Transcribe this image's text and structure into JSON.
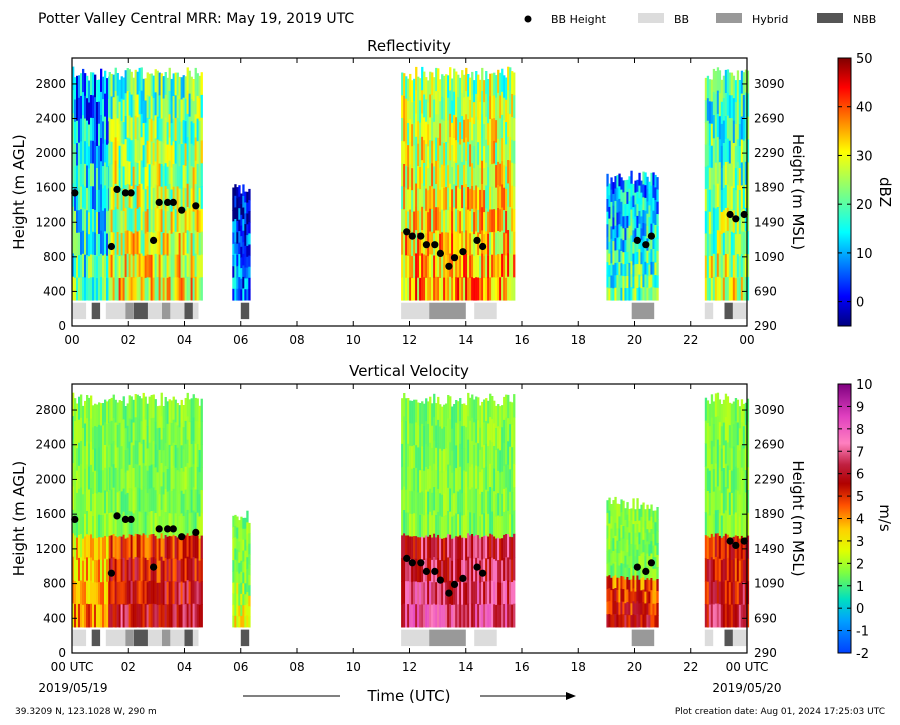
{
  "header": {
    "title": "Potter Valley Central MRR:  May 19, 2019 UTC",
    "legend": [
      {
        "label": "BB Height",
        "kind": "dot",
        "color": "#000000"
      },
      {
        "label": "BB",
        "kind": "bar",
        "color": "#dcdcdc"
      },
      {
        "label": "Hybrid",
        "kind": "bar",
        "color": "#999999"
      },
      {
        "label": "NBB",
        "kind": "bar",
        "color": "#555555"
      }
    ]
  },
  "footer": {
    "location": "39.3209 N, 123.1028 W, 290 m",
    "creation": "Plot creation date: Aug 01, 2024 17:25:03 UTC",
    "xlabel": "Time (UTC)",
    "date_start": "2019/05/19",
    "date_end": "2019/05/20"
  },
  "colors": {
    "bb": "#dcdcdc",
    "hybrid": "#999999",
    "nbb": "#555555",
    "dot": "#000000"
  },
  "chart_data": [
    {
      "type": "heatmap",
      "title": "Reflectivity",
      "ylabel": "Height (m AGL)",
      "ylabel_right": "Height (m MSL)",
      "colorbar_label": "dBZ",
      "colorbar_range": [
        -5,
        50
      ],
      "colorbar_ticks": [
        "50",
        "40",
        "30",
        "20",
        "10",
        "0"
      ],
      "x_ticks": [
        "00",
        "02",
        "04",
        "06",
        "08",
        "10",
        "12",
        "14",
        "16",
        "18",
        "20",
        "22",
        "00"
      ],
      "y_ticks": [
        "0",
        "400",
        "800",
        "1200",
        "1600",
        "2000",
        "2400",
        "2800"
      ],
      "y_ticks_right": [
        "290",
        "690",
        "1090",
        "1490",
        "1890",
        "2290",
        "2690",
        "3090"
      ],
      "xlim": [
        0,
        24
      ],
      "ylim": [
        0,
        3100
      ]
    },
    {
      "type": "heatmap",
      "title": "Vertical Velocity",
      "ylabel": "Height (m AGL)",
      "ylabel_right": "Height (m MSL)",
      "colorbar_label": "m/s",
      "colorbar_range": [
        -2,
        10
      ],
      "colorbar_ticks": [
        "10",
        "9",
        "8",
        "7",
        "6",
        "5",
        "4",
        "3",
        "2",
        "1",
        "0",
        "-1",
        "-2"
      ],
      "x_ticks": [
        "00 UTC",
        "02",
        "04",
        "06",
        "08",
        "10",
        "12",
        "14",
        "16",
        "18",
        "20",
        "22",
        "00 UTC"
      ],
      "y_ticks": [
        "0",
        "400",
        "800",
        "1200",
        "1600",
        "2000",
        "2400",
        "2800"
      ],
      "y_ticks_right": [
        "290",
        "690",
        "1090",
        "1490",
        "1890",
        "2290",
        "2690",
        "3090"
      ],
      "xlim": [
        0,
        24
      ],
      "ylim": [
        0,
        3100
      ]
    }
  ],
  "echo_segments": [
    {
      "start": 0.0,
      "end": 1.3,
      "top": 3000,
      "refl": 14,
      "vv": 2.5
    },
    {
      "start": 1.3,
      "end": 4.6,
      "top": 3000,
      "refl": 26,
      "vv": 4.5
    },
    {
      "start": 5.7,
      "end": 6.3,
      "top": 1650,
      "refl": 4,
      "vv": 1.5
    },
    {
      "start": 11.7,
      "end": 15.7,
      "top": 3000,
      "refl": 30,
      "vv": 5.5
    },
    {
      "start": 19.0,
      "end": 20.8,
      "top": 1800,
      "refl": 16,
      "vv": 4.0
    },
    {
      "start": 22.5,
      "end": 24.0,
      "top": 3000,
      "refl": 22,
      "vv": 4.5
    }
  ],
  "bb_heights": [
    {
      "t": 0.1,
      "h": 1540
    },
    {
      "t": 1.4,
      "h": 920
    },
    {
      "t": 1.6,
      "h": 1580
    },
    {
      "t": 1.9,
      "h": 1540
    },
    {
      "t": 2.1,
      "h": 1540
    },
    {
      "t": 2.9,
      "h": 990
    },
    {
      "t": 3.1,
      "h": 1430
    },
    {
      "t": 3.4,
      "h": 1430
    },
    {
      "t": 3.6,
      "h": 1430
    },
    {
      "t": 3.9,
      "h": 1340
    },
    {
      "t": 4.4,
      "h": 1390
    },
    {
      "t": 11.9,
      "h": 1090
    },
    {
      "t": 12.1,
      "h": 1040
    },
    {
      "t": 12.4,
      "h": 1040
    },
    {
      "t": 12.6,
      "h": 940
    },
    {
      "t": 12.9,
      "h": 940
    },
    {
      "t": 13.1,
      "h": 840
    },
    {
      "t": 13.4,
      "h": 690
    },
    {
      "t": 13.6,
      "h": 790
    },
    {
      "t": 13.9,
      "h": 860
    },
    {
      "t": 14.4,
      "h": 990
    },
    {
      "t": 14.6,
      "h": 920
    },
    {
      "t": 20.1,
      "h": 990
    },
    {
      "t": 20.4,
      "h": 940
    },
    {
      "t": 20.6,
      "h": 1040
    },
    {
      "t": 23.4,
      "h": 1290
    },
    {
      "t": 23.6,
      "h": 1240
    },
    {
      "t": 23.9,
      "h": 1290
    }
  ],
  "bb_types": [
    {
      "start": 0.0,
      "end": 0.5,
      "type": "bb"
    },
    {
      "start": 0.7,
      "end": 1.0,
      "type": "nbb"
    },
    {
      "start": 1.2,
      "end": 1.9,
      "type": "bb"
    },
    {
      "start": 1.9,
      "end": 2.2,
      "type": "hybrid"
    },
    {
      "start": 2.2,
      "end": 2.7,
      "type": "nbb"
    },
    {
      "start": 2.7,
      "end": 3.2,
      "type": "bb"
    },
    {
      "start": 3.2,
      "end": 3.5,
      "type": "hybrid"
    },
    {
      "start": 3.5,
      "end": 4.0,
      "type": "bb"
    },
    {
      "start": 4.0,
      "end": 4.3,
      "type": "nbb"
    },
    {
      "start": 4.3,
      "end": 4.5,
      "type": "bb"
    },
    {
      "start": 6.0,
      "end": 6.3,
      "type": "nbb"
    },
    {
      "start": 11.7,
      "end": 12.7,
      "type": "bb"
    },
    {
      "start": 12.7,
      "end": 14.0,
      "type": "hybrid"
    },
    {
      "start": 14.3,
      "end": 15.1,
      "type": "bb"
    },
    {
      "start": 19.9,
      "end": 20.7,
      "type": "hybrid"
    },
    {
      "start": 22.5,
      "end": 22.8,
      "type": "bb"
    },
    {
      "start": 23.2,
      "end": 23.5,
      "type": "nbb"
    },
    {
      "start": 23.5,
      "end": 24.0,
      "type": "bb"
    }
  ]
}
